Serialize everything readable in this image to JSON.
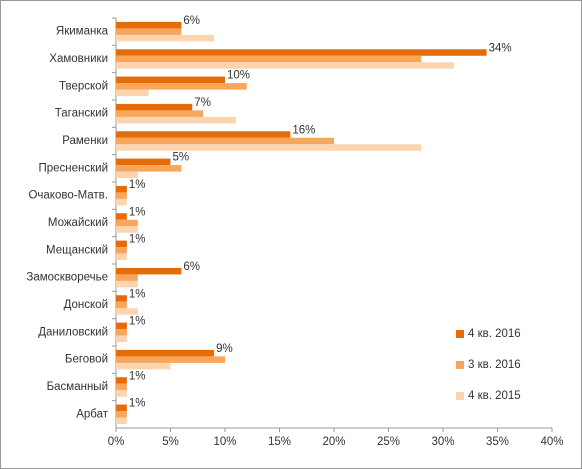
{
  "chart_data": {
    "type": "barh",
    "categories": [
      "Якиманка",
      "Хамовники",
      "Тверской",
      "Таганский",
      "Раменки",
      "Пресненский",
      "Очаково-Матв.",
      "Можайский",
      "Мещанский",
      "Замоскворечье",
      "Донской",
      "Даниловский",
      "Беговой",
      "Басманный",
      "Арбат"
    ],
    "series": [
      {
        "name": "4 кв. 2016",
        "color": "#e46c0a",
        "values": [
          6,
          34,
          10,
          7,
          16,
          5,
          1,
          1,
          1,
          6,
          1,
          1,
          9,
          1,
          1
        ],
        "value_labels": [
          "6%",
          "34%",
          "10%",
          "7%",
          "16%",
          "5%",
          "1%",
          "1%",
          "1%",
          "6%",
          "1%",
          "1%",
          "9%",
          "1%",
          "1%"
        ]
      },
      {
        "name": "3 кв. 2016",
        "color": "#f8a65c",
        "values": [
          6,
          28,
          12,
          8,
          20,
          6,
          1,
          2,
          1,
          2,
          1,
          1,
          10,
          1,
          1
        ]
      },
      {
        "name": "4 кв. 2015",
        "color": "#fcd5b0",
        "values": [
          9,
          31,
          3,
          11,
          28,
          2,
          1,
          2,
          1,
          2,
          2,
          1,
          5,
          1,
          1
        ]
      }
    ],
    "xlim": [
      0,
      40
    ],
    "xticks": [
      {
        "value": 0,
        "label": "0%"
      },
      {
        "value": 5,
        "label": "5%"
      },
      {
        "value": 10,
        "label": "10%"
      },
      {
        "value": 15,
        "label": "15%"
      },
      {
        "value": 20,
        "label": "20%"
      },
      {
        "value": 25,
        "label": "25%"
      },
      {
        "value": 30,
        "label": "30%"
      },
      {
        "value": 35,
        "label": "35%"
      },
      {
        "value": 40,
        "label": "40%"
      }
    ],
    "legend": "lower right"
  }
}
